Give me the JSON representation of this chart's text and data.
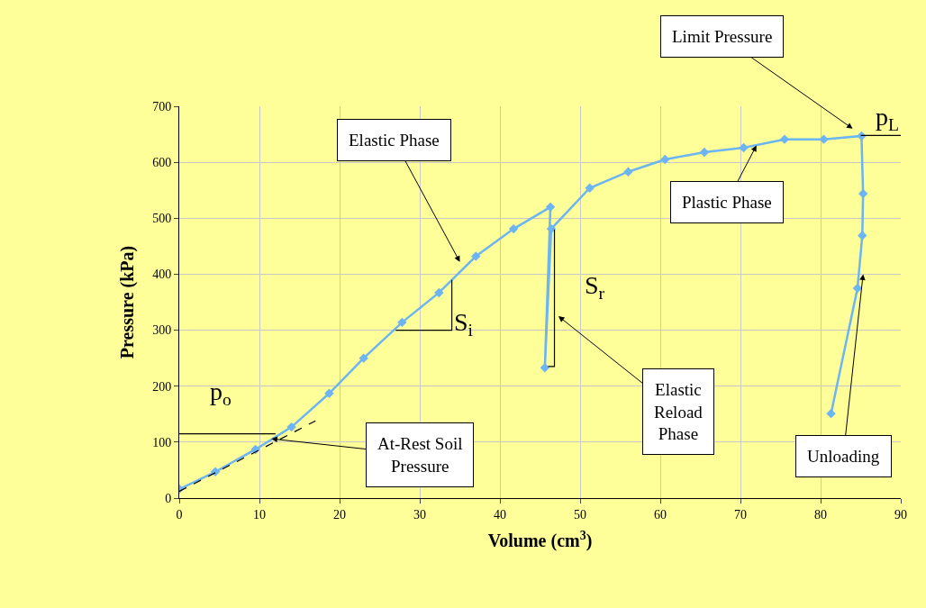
{
  "chart_data": {
    "type": "line",
    "xlabel": "Volume (cm$^{3}$)",
    "ylabel": "Pressure (kPa)",
    "xlim": [
      0,
      90
    ],
    "xticks": [
      0,
      10,
      20,
      30,
      40,
      50,
      60,
      70,
      80,
      90
    ],
    "ylim": [
      0,
      700
    ],
    "yticks": [
      0,
      100,
      200,
      300,
      400,
      500,
      600,
      700
    ],
    "grid": true,
    "marker": "diamond",
    "series": [
      {
        "color": "#6cb4f2",
        "x": [
          0,
          4.5,
          9.5,
          14,
          18.7,
          23,
          27.8,
          32.4,
          37,
          41.7,
          46.3,
          45.6,
          46.4,
          51.2,
          56,
          60.6,
          65.5,
          70.4,
          75.5,
          80.4,
          85.1,
          85.3,
          85.2,
          84.6,
          81.3
        ],
        "values": [
          16,
          47,
          87,
          127,
          187,
          250,
          314,
          367,
          432,
          481,
          520,
          233,
          481,
          554,
          583,
          605,
          618,
          626,
          641,
          641,
          647,
          544,
          469,
          375,
          151
        ]
      },
      {
        "color": "#000000",
        "marker": "none",
        "line_style": "dashed",
        "x": [
          0,
          17
        ],
        "values": [
          12,
          138
        ]
      },
      {
        "color": "#000000",
        "marker": "none",
        "line_style": "solid",
        "x": [
          0,
          12
        ],
        "values": [
          115,
          115
        ]
      },
      {
        "color": "#000000",
        "marker": "none",
        "line_style": "solid",
        "x": [
          27,
          34,
          34
        ],
        "values": [
          300,
          300,
          390
        ]
      },
      {
        "color": "#000000",
        "marker": "none",
        "line_style": "solid",
        "x": [
          46.8,
          46.8,
          46
        ],
        "values": [
          480,
          235,
          235
        ]
      },
      {
        "color": "#000000",
        "marker": "none",
        "line_style": "solid",
        "x": [
          85,
          90
        ],
        "values": [
          648,
          648
        ]
      }
    ],
    "annotations": [
      "Elastic Phase",
      "Limit Pressure",
      {
        "text": "Plastic Phase",
        "x": 72,
        "y": 630
      },
      {
        "text": "Elastic\nReload\nPhase",
        "x": 47.3,
        "y": 325
      },
      {
        "text": "At-Rest Soil\nPressure",
        "x": 11.5,
        "y": 106
      },
      {
        "text": "Unloading",
        "x": 85.3,
        "y": 400
      },
      "p$_{o}$",
      "S$_{i}$",
      "S$_{r}$",
      "p$_{L}$"
    ]
  }
}
